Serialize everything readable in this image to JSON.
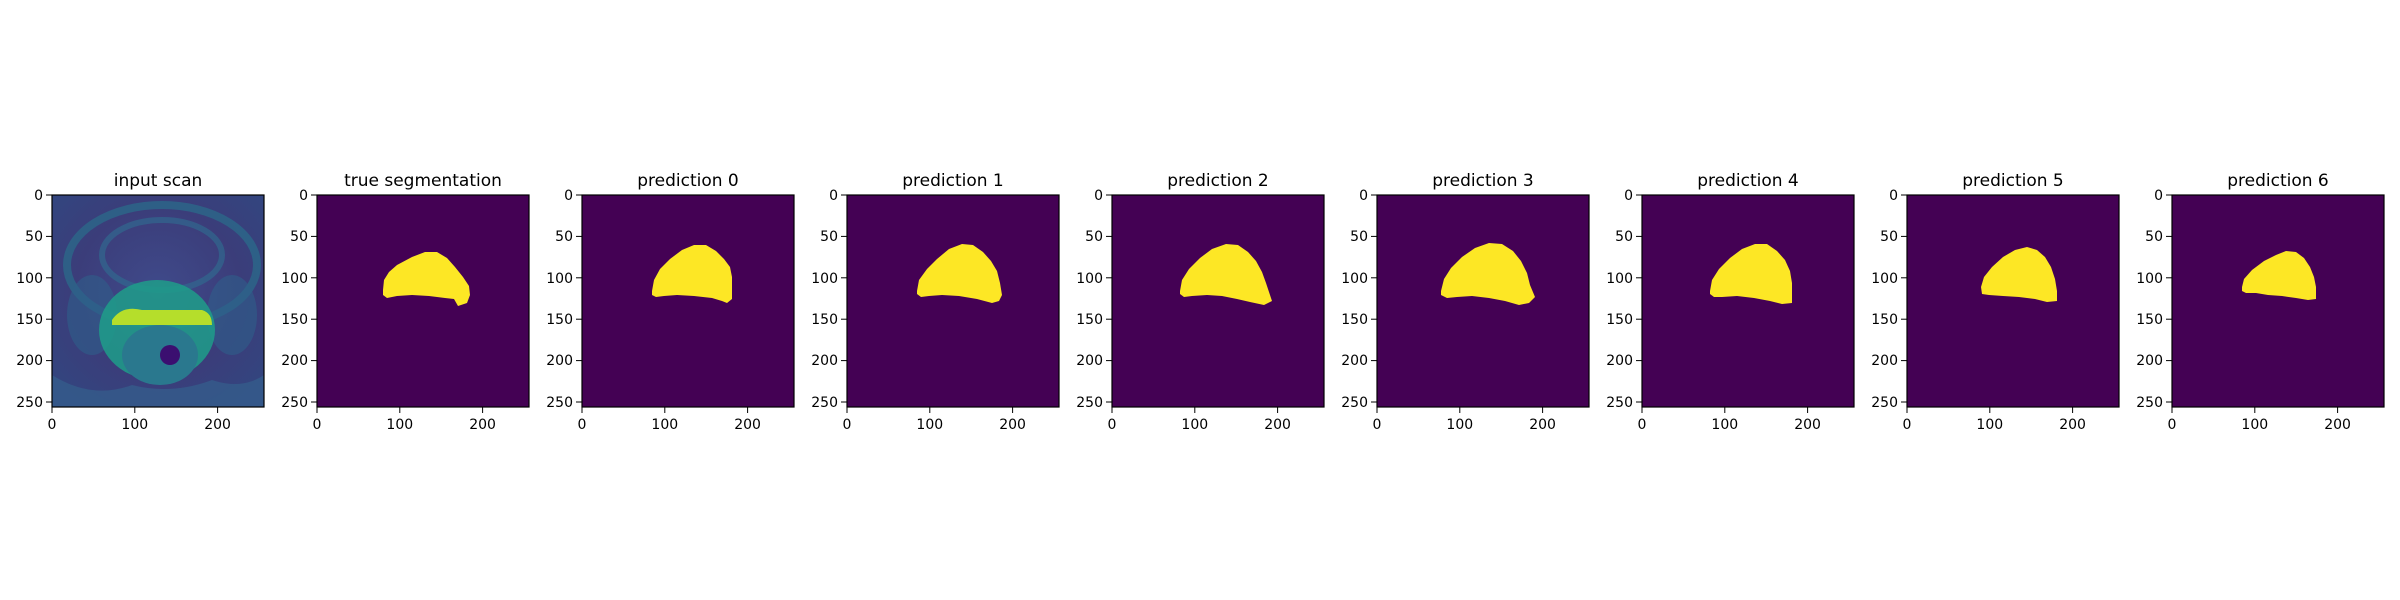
{
  "figure": {
    "panels": [
      {
        "title": "input scan",
        "kind": "scan"
      },
      {
        "title": "true segmentation",
        "kind": "mask"
      },
      {
        "title": "prediction 0",
        "kind": "mask"
      },
      {
        "title": "prediction 1",
        "kind": "mask"
      },
      {
        "title": "prediction 2",
        "kind": "mask"
      },
      {
        "title": "prediction 3",
        "kind": "mask"
      },
      {
        "title": "prediction 4",
        "kind": "mask"
      },
      {
        "title": "prediction 5",
        "kind": "mask"
      },
      {
        "title": "prediction 6",
        "kind": "mask"
      }
    ],
    "axes": {
      "x_ticks": [
        0,
        100,
        200
      ],
      "y_ticks": [
        0,
        50,
        100,
        150,
        200,
        250
      ],
      "extent": [
        0,
        256
      ]
    },
    "colors": {
      "background": "#440154",
      "foreground": "#fde725",
      "scan_dark": "#3b3d7a",
      "scan_mid": "#2a7d8e",
      "scan_bright": "#35b779"
    }
  }
}
